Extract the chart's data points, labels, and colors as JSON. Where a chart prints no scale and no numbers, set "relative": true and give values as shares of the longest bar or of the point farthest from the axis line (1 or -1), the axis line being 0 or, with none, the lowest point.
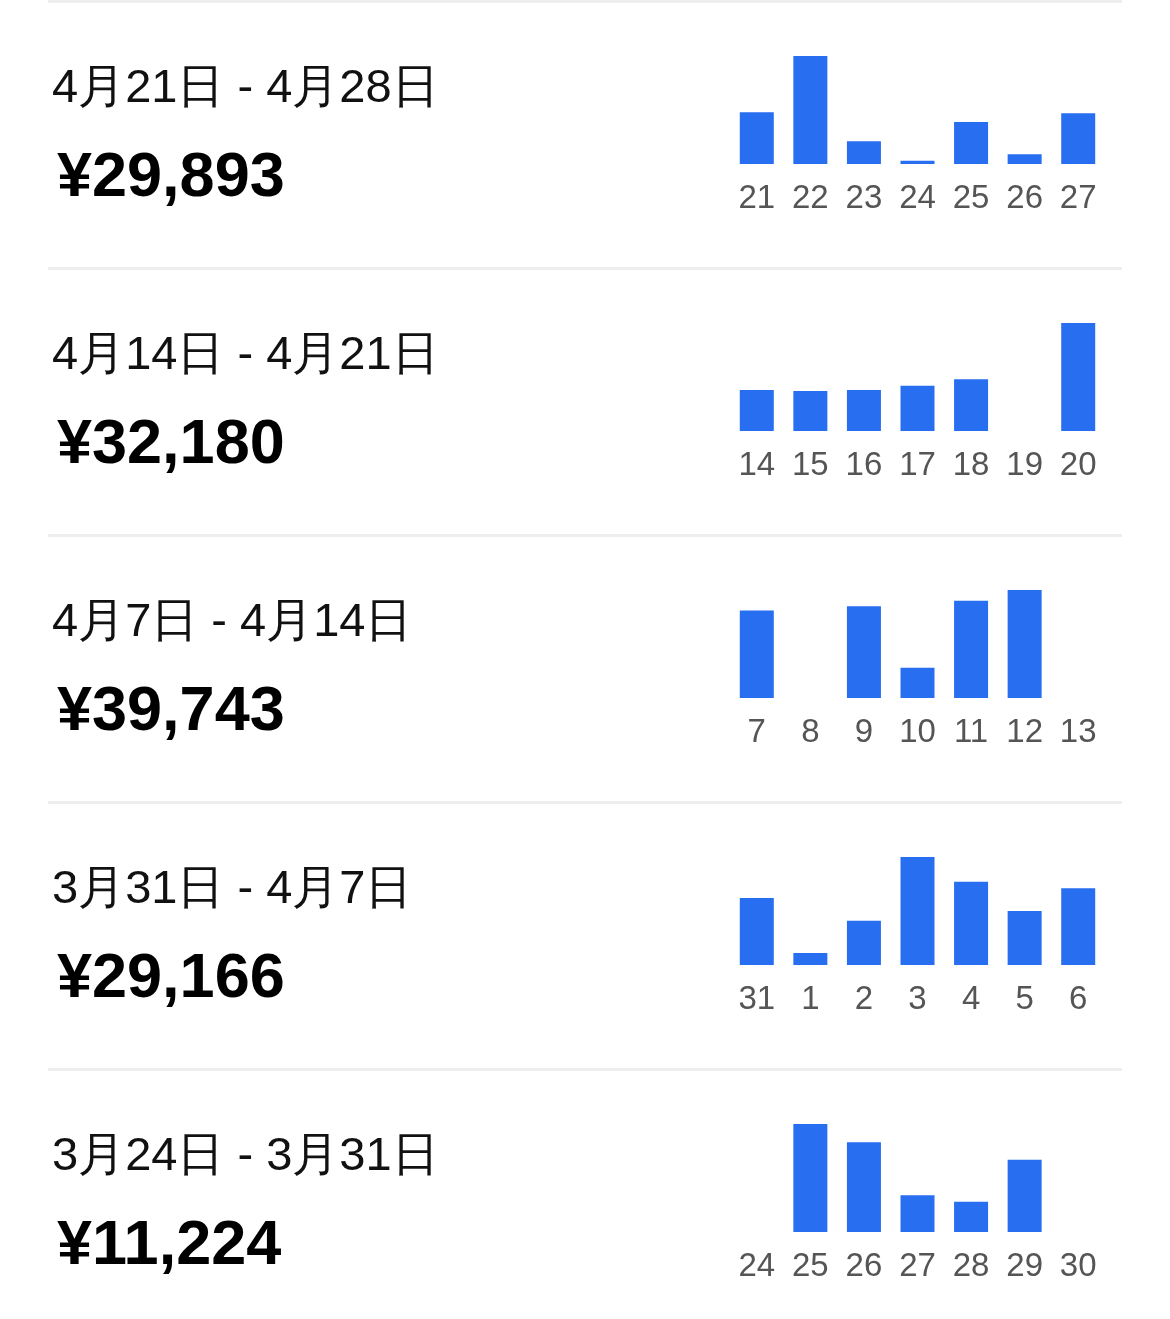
{
  "chart_data": [
    {
      "type": "other",
      "title": "4月21日 - 4月28日",
      "subtitle": "¥29,893"
    },
    {
      "type": "bar",
      "relative": true,
      "categories": [
        "21",
        "22",
        "23",
        "24",
        "25",
        "26",
        "27"
      ],
      "values": [
        0.48,
        1,
        0.21,
        0.03,
        0.39,
        0.09,
        0.47
      ],
      "color": "#276ef1"
    },
    {
      "type": "other",
      "title": "4月14日 - 4月21日",
      "subtitle": "¥32,180"
    },
    {
      "type": "bar",
      "relative": true,
      "categories": [
        "14",
        "15",
        "16",
        "17",
        "18",
        "19",
        "20"
      ],
      "values": [
        0.38,
        0.37,
        0.38,
        0.42,
        0.48,
        0,
        1
      ],
      "color": "#276ef1"
    },
    {
      "type": "other",
      "title": "4月7日 - 4月14日",
      "subtitle": "¥39,743"
    },
    {
      "type": "bar",
      "relative": true,
      "categories": [
        "7",
        "8",
        "9",
        "10",
        "11",
        "12",
        "13"
      ],
      "values": [
        0.81,
        0,
        0.85,
        0.28,
        0.9,
        1,
        0
      ],
      "color": "#276ef1"
    },
    {
      "type": "other",
      "title": "3月31日 - 4月7日",
      "subtitle": "¥29,166"
    },
    {
      "type": "bar",
      "relative": true,
      "categories": [
        "31",
        "1",
        "2",
        "3",
        "4",
        "5",
        "6"
      ],
      "values": [
        0.62,
        0.11,
        0.41,
        1,
        0.77,
        0.5,
        0.71
      ],
      "color": "#276ef1"
    },
    {
      "type": "other",
      "title": "3月24日 - 3月31日",
      "subtitle": "¥11,224"
    },
    {
      "type": "bar",
      "relative": true,
      "categories": [
        "24",
        "25",
        "26",
        "27",
        "28",
        "29",
        "30"
      ],
      "values": [
        0,
        1,
        0.83,
        0.34,
        0.28,
        0.67,
        0
      ],
      "color": "#276ef1"
    }
  ]
}
